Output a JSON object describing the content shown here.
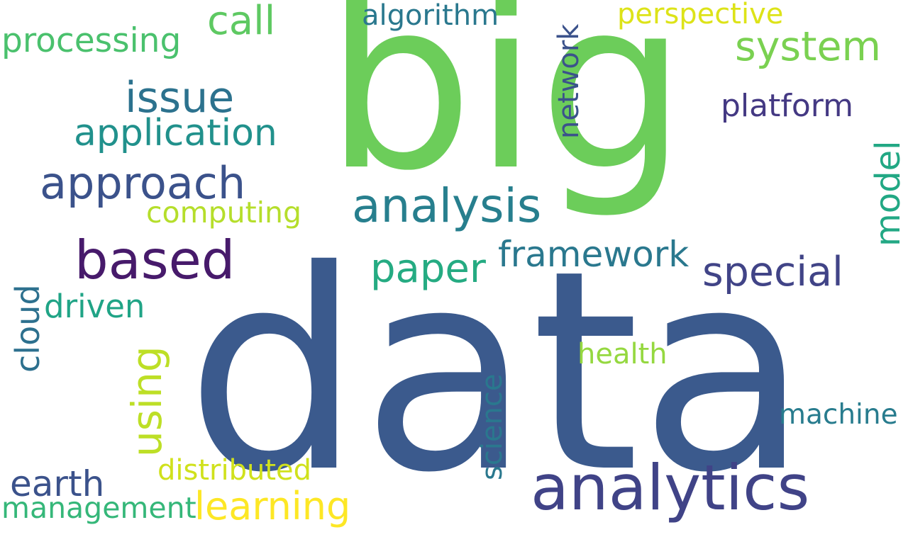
{
  "words": [
    {
      "id": "big",
      "text": "big",
      "color": "#6ccd5a"
    },
    {
      "id": "data",
      "text": "data",
      "color": "#3b5a8d"
    },
    {
      "id": "analytics",
      "text": "analytics",
      "color": "#404387"
    },
    {
      "id": "analysis",
      "text": "analysis",
      "color": "#277f8e"
    },
    {
      "id": "based",
      "text": "based",
      "color": "#471a6b"
    },
    {
      "id": "approach",
      "text": "approach",
      "color": "#3b528b"
    },
    {
      "id": "issue",
      "text": "issue",
      "color": "#2c728e"
    },
    {
      "id": "application",
      "text": "application",
      "color": "#21918c"
    },
    {
      "id": "call",
      "text": "call",
      "color": "#5ec962"
    },
    {
      "id": "processing",
      "text": "processing",
      "color": "#4ac16d"
    },
    {
      "id": "algorithm",
      "text": "algorithm",
      "color": "#2a788e"
    },
    {
      "id": "perspective",
      "text": "perspective",
      "color": "#dde318"
    },
    {
      "id": "system",
      "text": "system",
      "color": "#7ad151"
    },
    {
      "id": "platform",
      "text": "platform",
      "color": "#443983"
    },
    {
      "id": "network",
      "text": "network",
      "color": "#3b528b"
    },
    {
      "id": "model",
      "text": "model",
      "color": "#22a884"
    },
    {
      "id": "special",
      "text": "special",
      "color": "#414487"
    },
    {
      "id": "framework",
      "text": "framework",
      "color": "#2a788e"
    },
    {
      "id": "paper",
      "text": "paper",
      "color": "#25ab82"
    },
    {
      "id": "computing",
      "text": "computing",
      "color": "#b5de2b"
    },
    {
      "id": "driven",
      "text": "driven",
      "color": "#20a486"
    },
    {
      "id": "cloud",
      "text": "cloud",
      "color": "#2d708e"
    },
    {
      "id": "using",
      "text": "using",
      "color": "#bddf26"
    },
    {
      "id": "science",
      "text": "science",
      "color": "#2a788e"
    },
    {
      "id": "health",
      "text": "health",
      "color": "#95d840"
    },
    {
      "id": "machine",
      "text": "machine",
      "color": "#287c8e"
    },
    {
      "id": "distributed",
      "text": "distributed",
      "color": "#d0e11c"
    },
    {
      "id": "earth",
      "text": "earth",
      "color": "#3b528b"
    },
    {
      "id": "learning",
      "text": "learning",
      "color": "#fde725"
    },
    {
      "id": "management",
      "text": "management",
      "color": "#35b779"
    }
  ]
}
